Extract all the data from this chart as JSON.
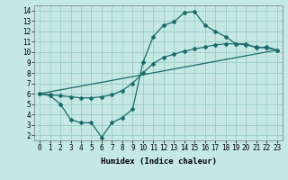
{
  "xlabel": "Humidex (Indice chaleur)",
  "bg_color": "#c5e8e5",
  "grid_color": "#9fcfcb",
  "line_color": "#1a6b6b",
  "xlim_min": -0.5,
  "xlim_max": 23.5,
  "ylim_min": 1.5,
  "ylim_max": 14.5,
  "xticks": [
    0,
    1,
    2,
    3,
    4,
    5,
    6,
    7,
    8,
    9,
    10,
    11,
    12,
    13,
    14,
    15,
    16,
    17,
    18,
    19,
    20,
    21,
    22,
    23
  ],
  "yticks": [
    2,
    3,
    4,
    5,
    6,
    7,
    8,
    9,
    10,
    11,
    12,
    13,
    14
  ],
  "line1_x": [
    0,
    1,
    2,
    3,
    4,
    5,
    6,
    7,
    8,
    9,
    10,
    11,
    12,
    13,
    14,
    15,
    16,
    17,
    18,
    19,
    20,
    21,
    22,
    23
  ],
  "line1_y": [
    6.0,
    5.8,
    5.0,
    3.5,
    3.2,
    3.2,
    1.8,
    3.2,
    3.7,
    4.5,
    9.0,
    11.5,
    12.6,
    12.9,
    13.8,
    13.9,
    12.6,
    12.0,
    11.5,
    10.8,
    10.8,
    10.4,
    10.5,
    10.2
  ],
  "line2_x": [
    0,
    1,
    2,
    3,
    4,
    5,
    6,
    7,
    8,
    9,
    10,
    11,
    12,
    13,
    14,
    15,
    16,
    17,
    18,
    19,
    20,
    21,
    22,
    23
  ],
  "line2_y": [
    6.0,
    5.9,
    5.8,
    5.7,
    5.6,
    5.6,
    5.7,
    5.9,
    6.3,
    7.0,
    8.0,
    8.9,
    9.5,
    9.8,
    10.1,
    10.3,
    10.5,
    10.7,
    10.8,
    10.8,
    10.7,
    10.5,
    10.4,
    10.2
  ],
  "line3_x": [
    0,
    23
  ],
  "line3_y": [
    6.0,
    10.2
  ],
  "xlabel_fontsize": 6.5,
  "tick_fontsize": 5.5
}
